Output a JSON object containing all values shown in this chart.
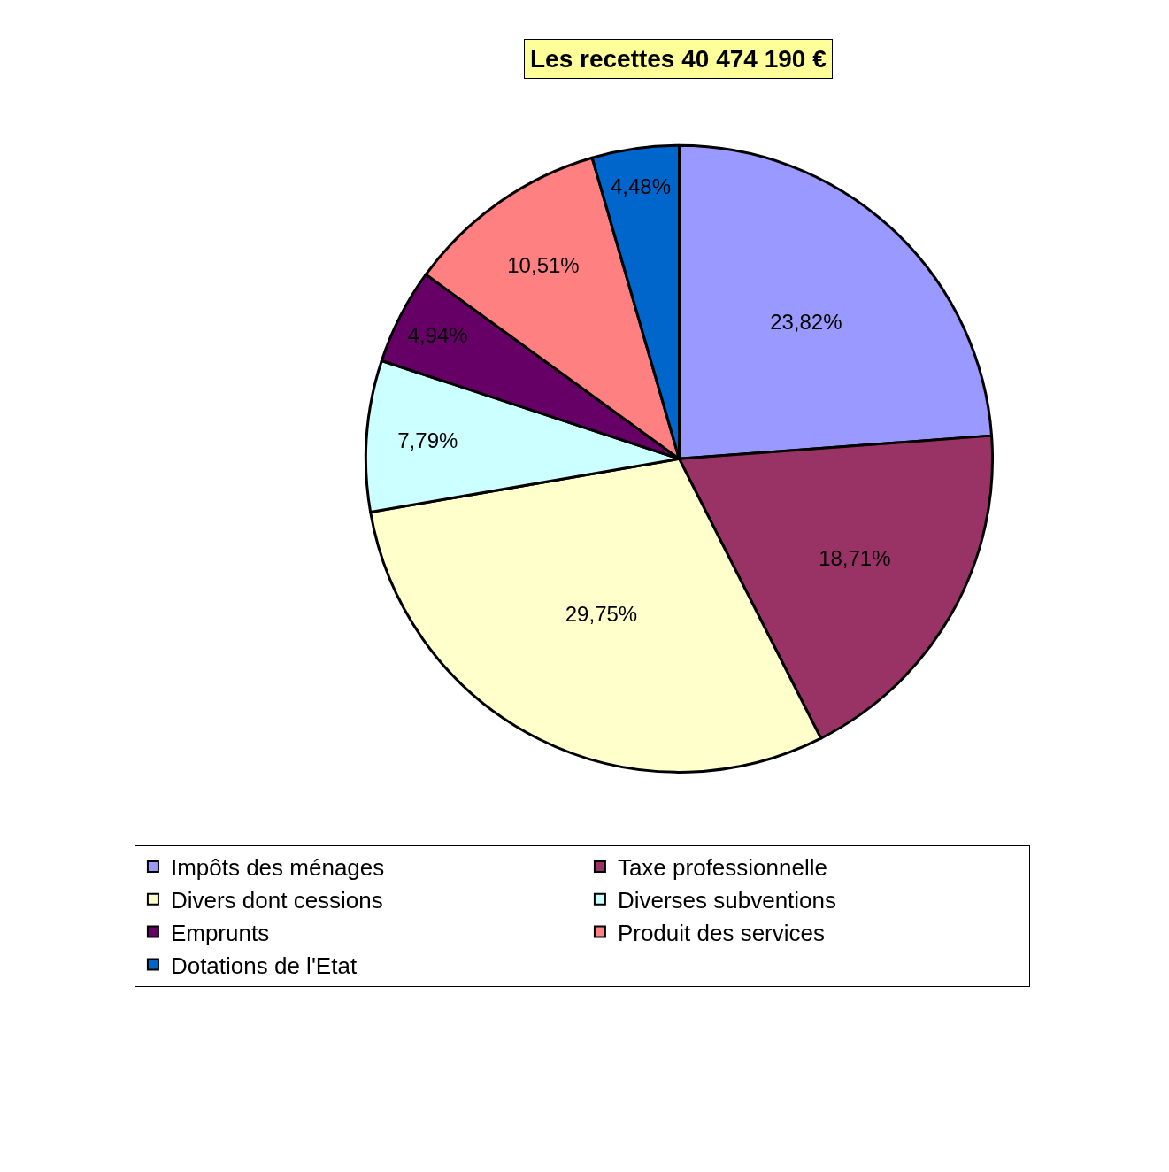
{
  "chart_data": {
    "type": "pie",
    "title": "Les recettes 40 474 190 €",
    "categories": [
      "Impôts des ménages",
      "Taxe professionnelle",
      "Divers dont cessions",
      "Diverses subventions",
      "Emprunts",
      "Produit des services",
      "Dotations de l'Etat"
    ],
    "values": [
      23.82,
      18.71,
      29.75,
      7.79,
      4.94,
      10.51,
      4.48
    ],
    "value_labels": [
      "23,82%",
      "18,71%",
      "29,75%",
      "7,79%",
      "4,94%",
      "10,51%",
      "4,48%"
    ],
    "colors": [
      "#9999ff",
      "#993366",
      "#ffffcc",
      "#ccffff",
      "#660066",
      "#ff8080",
      "#0066cc"
    ],
    "legend": "bottom left"
  }
}
